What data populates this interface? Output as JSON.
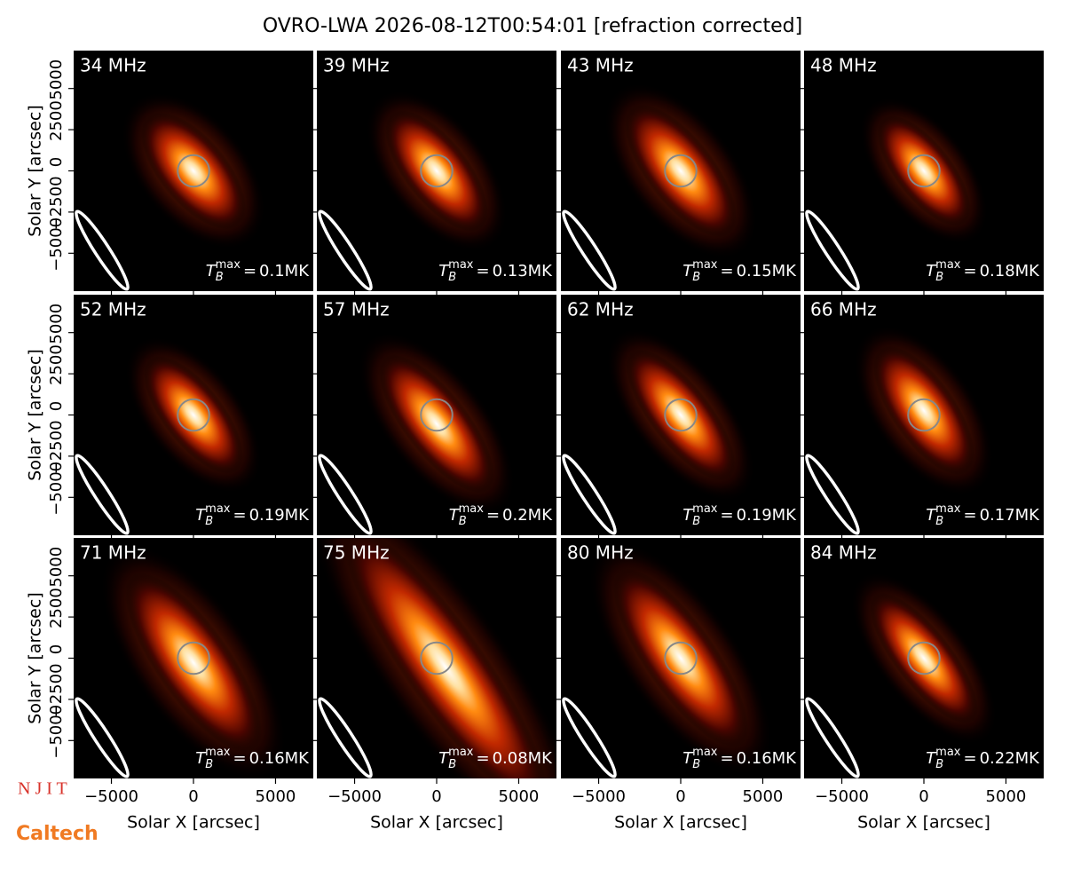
{
  "title": "OVRO-LWA 2026-08-12T00:54:01 [refraction corrected]",
  "xlabel": "Solar X [arcsec]",
  "ylabel": "Solar Y [arcsec]",
  "xlim": [
    -7300,
    7300
  ],
  "ylim": [
    -7300,
    7300
  ],
  "xticks": [
    {
      "value": -5000,
      "label": "−5000"
    },
    0,
    5000
  ],
  "yticks": [
    {
      "value": -5000,
      "label": "−5000"
    },
    {
      "value": -2500,
      "label": "−2500"
    },
    0,
    2500,
    5000
  ],
  "tb_label": {
    "base": "T",
    "sub": "B",
    "sup": "max",
    "eq": "="
  },
  "logos": [
    "N J I T",
    "Caltech"
  ],
  "chart_data": [
    {
      "type": "image",
      "label": "34 MHz",
      "tb_max": "0.1MK"
    },
    {
      "type": "image",
      "label": "39 MHz",
      "tb_max": "0.13MK"
    },
    {
      "type": "image",
      "label": "43 MHz",
      "tb_max": "0.15MK"
    },
    {
      "type": "image",
      "label": "48 MHz",
      "tb_max": "0.18MK"
    },
    {
      "type": "image",
      "label": "52 MHz",
      "tb_max": "0.19MK"
    },
    {
      "type": "image",
      "label": "57 MHz",
      "tb_max": "0.2MK"
    },
    {
      "type": "image",
      "label": "62 MHz",
      "tb_max": "0.19MK"
    },
    {
      "type": "image",
      "label": "66 MHz",
      "tb_max": "0.17MK"
    },
    {
      "type": "image",
      "label": "71 MHz",
      "tb_max": "0.16MK"
    },
    {
      "type": "image",
      "label": "75 MHz",
      "tb_max": "0.08MK"
    },
    {
      "type": "image",
      "label": "80 MHz",
      "tb_max": "0.16MK"
    },
    {
      "type": "image",
      "label": "84 MHz",
      "tb_max": "0.22MK"
    }
  ]
}
